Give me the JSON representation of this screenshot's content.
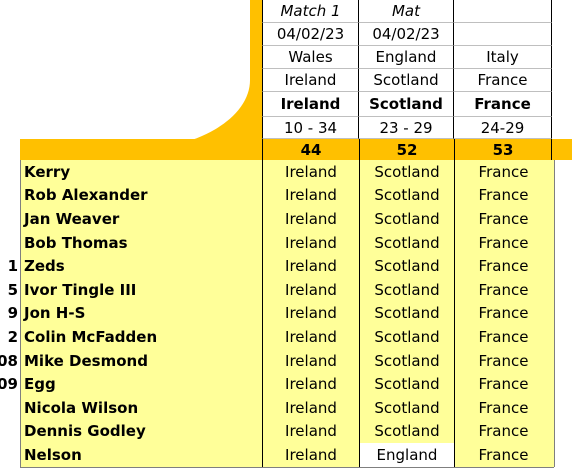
{
  "matches": [
    {
      "label": "Match 1",
      "date": "04/02/23",
      "home": "Wales",
      "away": "Ireland",
      "winner": "Ireland",
      "score": "10 - 34",
      "total": "44"
    },
    {
      "label": "Mat",
      "date": "04/02/23",
      "home": "England",
      "away": "Scotland",
      "winner": "Scotland",
      "score": "23 - 29",
      "total": "52"
    },
    {
      "label": "",
      "date": "",
      "home": "Italy",
      "away": "France",
      "winner": "France",
      "score": "24-29",
      "total": "53"
    }
  ],
  "players": [
    {
      "num": "",
      "name": "Kerry",
      "picks": [
        "Ireland",
        "Scotland",
        "France"
      ]
    },
    {
      "num": "",
      "name": "Rob Alexander",
      "picks": [
        "Ireland",
        "Scotland",
        "France"
      ]
    },
    {
      "num": "",
      "name": "Jan Weaver",
      "picks": [
        "Ireland",
        "Scotland",
        "France"
      ]
    },
    {
      "num": "",
      "name": "Bob Thomas",
      "picks": [
        "Ireland",
        "Scotland",
        "France"
      ]
    },
    {
      "num": "1",
      "name": "Zeds",
      "picks": [
        "Ireland",
        "Scotland",
        "France"
      ]
    },
    {
      "num": "5",
      "name": "Ivor Tingle III",
      "picks": [
        "Ireland",
        "Scotland",
        "France"
      ]
    },
    {
      "num": "9",
      "name": "Jon H-S",
      "picks": [
        "Ireland",
        "Scotland",
        "France"
      ]
    },
    {
      "num": "2",
      "name": "Colin McFadden",
      "picks": [
        "Ireland",
        "Scotland",
        "France"
      ]
    },
    {
      "num": "08",
      "name": "Mike Desmond",
      "picks": [
        "Ireland",
        "Scotland",
        "France"
      ]
    },
    {
      "num": "09",
      "name": "Egg",
      "picks": [
        "Ireland",
        "Scotland",
        "France"
      ]
    },
    {
      "num": "",
      "name": "Nicola Wilson",
      "picks": [
        "Ireland",
        "Scotland",
        "France"
      ]
    },
    {
      "num": "",
      "name": "Dennis Godley",
      "picks": [
        "Ireland",
        "Scotland",
        "France"
      ]
    },
    {
      "num": "",
      "name": "Nelson",
      "picks": [
        "Ireland",
        "England",
        "France"
      ]
    }
  ],
  "colors": {
    "orange": "#ffc000",
    "row": "#ffff99"
  }
}
